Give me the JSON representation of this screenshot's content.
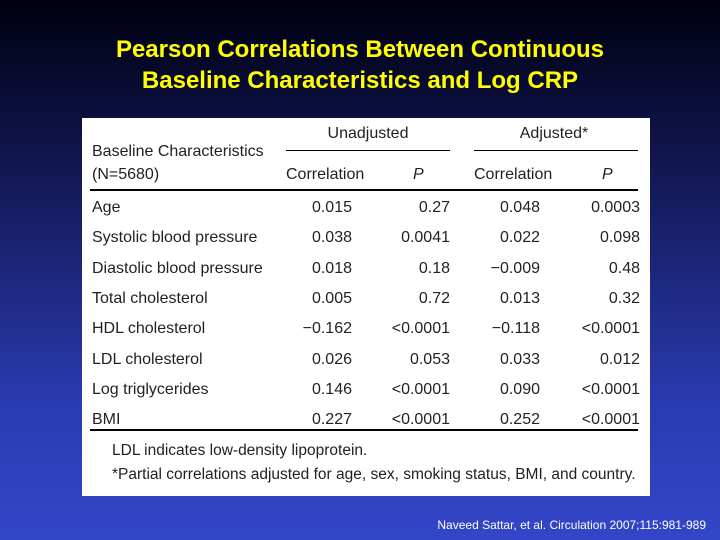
{
  "slide": {
    "title_line1": "Pearson Correlations Between Continuous",
    "title_line2": "Baseline Characteristics and Log CRP",
    "citation": "Naveed Sattar, et al. Circulation 2007;115:981-989"
  },
  "table": {
    "group_unadjusted": "Unadjusted",
    "group_adjusted": "Adjusted*",
    "row_header_line1": "Baseline Characteristics",
    "row_header_line2": "(N=5680)",
    "col_correlation": "Correlation",
    "col_p": "P",
    "rows": [
      {
        "label": "Age",
        "u_corr": "0.015",
        "u_p": "0.27",
        "a_corr": "0.048",
        "a_p": "0.0003"
      },
      {
        "label": "Systolic blood pressure",
        "u_corr": "0.038",
        "u_p": "0.0041",
        "a_corr": "0.022",
        "a_p": "0.098"
      },
      {
        "label": "Diastolic blood pressure",
        "u_corr": "0.018",
        "u_p": "0.18",
        "a_corr": "−0.009",
        "a_p": "0.48"
      },
      {
        "label": "Total cholesterol",
        "u_corr": "0.005",
        "u_p": "0.72",
        "a_corr": "0.013",
        "a_p": "0.32"
      },
      {
        "label": "HDL cholesterol",
        "u_corr": "−0.162",
        "u_p": "<0.0001",
        "a_corr": "−0.118",
        "a_p": "<0.0001"
      },
      {
        "label": "LDL cholesterol",
        "u_corr": "0.026",
        "u_p": "0.053",
        "a_corr": "0.033",
        "a_p": "0.012"
      },
      {
        "label": "Log triglycerides",
        "u_corr": "0.146",
        "u_p": "<0.0001",
        "a_corr": "0.090",
        "a_p": "<0.0001"
      },
      {
        "label": "BMI",
        "u_corr": "0.227",
        "u_p": "<0.0001",
        "a_corr": "0.252",
        "a_p": "<0.0001"
      }
    ],
    "footnote1": "LDL indicates low-density lipoprotein.",
    "footnote2": "*Partial correlations adjusted for age, sex, smoking status, BMI, and country."
  }
}
